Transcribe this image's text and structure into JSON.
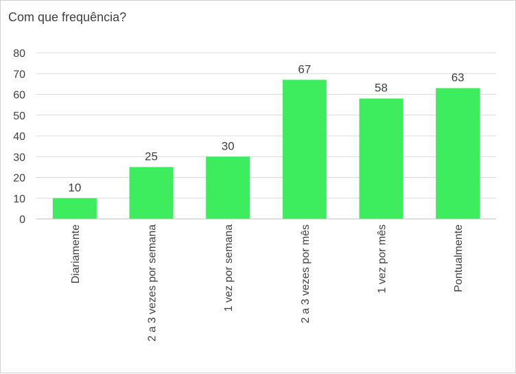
{
  "chart_data": {
    "type": "bar",
    "title": "Com que frequência?",
    "categories": [
      "Diariamente",
      "2 a 3 vezes por semana",
      "1 vez por semana",
      "2 a 3 vezes por mês",
      "1 vez por mês",
      "Pontualmente"
    ],
    "values": [
      10,
      25,
      30,
      67,
      58,
      63
    ],
    "yticks": [
      "0",
      "10",
      "20",
      "30",
      "40",
      "50",
      "60",
      "70",
      "80"
    ],
    "ylim": [
      0,
      80
    ],
    "grid": true,
    "legend": "none",
    "bar_color": "#3ded5d",
    "grid_color": "#d9d9d9"
  }
}
